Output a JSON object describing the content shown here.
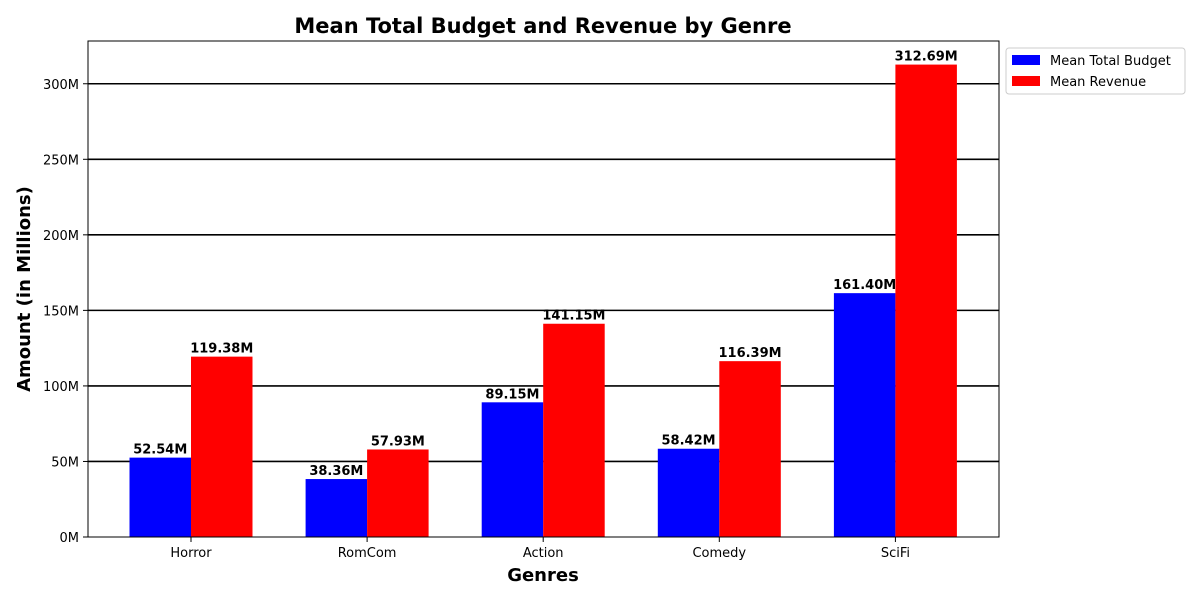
{
  "chart_data": {
    "type": "bar",
    "title": "Mean Total Budget and Revenue by Genre",
    "xlabel": "Genres",
    "ylabel": "Amount (in Millions)",
    "categories": [
      "Horror",
      "RomCom",
      "Action",
      "Comedy",
      "SciFi"
    ],
    "series": [
      {
        "name": "Mean Total Budget",
        "color": "#0000ff",
        "values": [
          52.54,
          38.36,
          89.15,
          58.42,
          161.4
        ],
        "labels": [
          "52.54M",
          "38.36M",
          "89.15M",
          "58.42M",
          "161.40M"
        ]
      },
      {
        "name": "Mean Revenue",
        "color": "#ff0000",
        "values": [
          119.38,
          57.93,
          141.15,
          116.39,
          312.69
        ],
        "labels": [
          "119.38M",
          "57.93M",
          "141.15M",
          "116.39M",
          "312.69M"
        ]
      }
    ],
    "ylim": [
      0,
      328.3
    ],
    "yticks": [
      0,
      50,
      100,
      150,
      200,
      250,
      300
    ],
    "ytick_labels": [
      "0M",
      "50M",
      "100M",
      "150M",
      "200M",
      "250M",
      "300M"
    ],
    "grid": "horizontal",
    "legend_position": "outside-top-right"
  }
}
